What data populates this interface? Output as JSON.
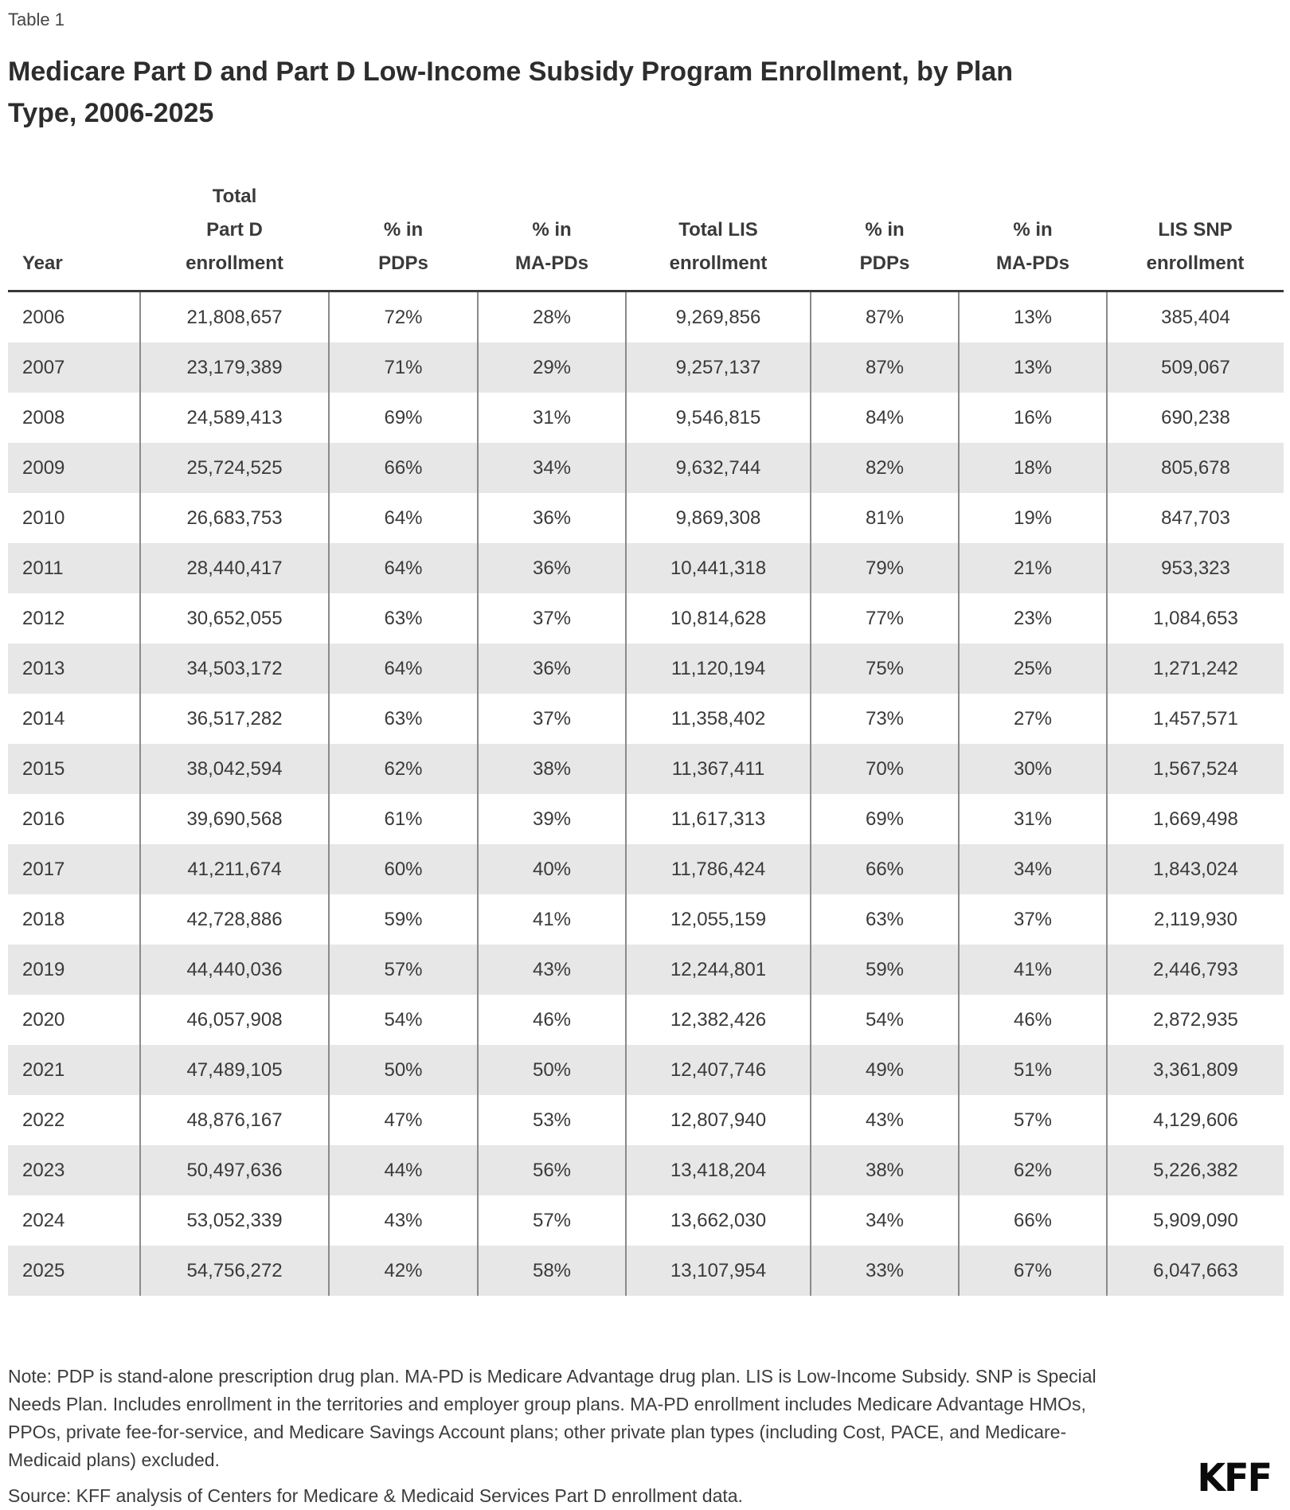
{
  "header": {
    "table_label": "Table 1",
    "title_lines": [
      "Medicare Part D and Part D Low-Income Subsidy Program Enrollment, by Plan",
      "Type, 2006-2025"
    ]
  },
  "chart_data": {
    "type": "table",
    "title": "Medicare Part D and Part D Low-Income Subsidy Program Enrollment, by Plan Type, 2006-2025",
    "columns": [
      "Year",
      "Total\nPart D\nenrollment",
      "% in\nPDPs",
      "% in\nMA-PDs",
      "Total LIS\nenrollment",
      "% in\nPDPs",
      "% in\nMA-PDs",
      "LIS SNP\nenrollment"
    ],
    "rows": [
      [
        "2006",
        "21,808,657",
        "72%",
        "28%",
        "9,269,856",
        "87%",
        "13%",
        "385,404"
      ],
      [
        "2007",
        "23,179,389",
        "71%",
        "29%",
        "9,257,137",
        "87%",
        "13%",
        "509,067"
      ],
      [
        "2008",
        "24,589,413",
        "69%",
        "31%",
        "9,546,815",
        "84%",
        "16%",
        "690,238"
      ],
      [
        "2009",
        "25,724,525",
        "66%",
        "34%",
        "9,632,744",
        "82%",
        "18%",
        "805,678"
      ],
      [
        "2010",
        "26,683,753",
        "64%",
        "36%",
        "9,869,308",
        "81%",
        "19%",
        "847,703"
      ],
      [
        "2011",
        "28,440,417",
        "64%",
        "36%",
        "10,441,318",
        "79%",
        "21%",
        "953,323"
      ],
      [
        "2012",
        "30,652,055",
        "63%",
        "37%",
        "10,814,628",
        "77%",
        "23%",
        "1,084,653"
      ],
      [
        "2013",
        "34,503,172",
        "64%",
        "36%",
        "11,120,194",
        "75%",
        "25%",
        "1,271,242"
      ],
      [
        "2014",
        "36,517,282",
        "63%",
        "37%",
        "11,358,402",
        "73%",
        "27%",
        "1,457,571"
      ],
      [
        "2015",
        "38,042,594",
        "62%",
        "38%",
        "11,367,411",
        "70%",
        "30%",
        "1,567,524"
      ],
      [
        "2016",
        "39,690,568",
        "61%",
        "39%",
        "11,617,313",
        "69%",
        "31%",
        "1,669,498"
      ],
      [
        "2017",
        "41,211,674",
        "60%",
        "40%",
        "11,786,424",
        "66%",
        "34%",
        "1,843,024"
      ],
      [
        "2018",
        "42,728,886",
        "59%",
        "41%",
        "12,055,159",
        "63%",
        "37%",
        "2,119,930"
      ],
      [
        "2019",
        "44,440,036",
        "57%",
        "43%",
        "12,244,801",
        "59%",
        "41%",
        "2,446,793"
      ],
      [
        "2020",
        "46,057,908",
        "54%",
        "46%",
        "12,382,426",
        "54%",
        "46%",
        "2,872,935"
      ],
      [
        "2021",
        "47,489,105",
        "50%",
        "50%",
        "12,407,746",
        "49%",
        "51%",
        "3,361,809"
      ],
      [
        "2022",
        "48,876,167",
        "47%",
        "53%",
        "12,807,940",
        "43%",
        "57%",
        "4,129,606"
      ],
      [
        "2023",
        "50,497,636",
        "44%",
        "56%",
        "13,418,204",
        "38%",
        "62%",
        "5,226,382"
      ],
      [
        "2024",
        "53,052,339",
        "43%",
        "57%",
        "13,662,030",
        "34%",
        "66%",
        "5,909,090"
      ],
      [
        "2025",
        "54,756,272",
        "42%",
        "58%",
        "13,107,954",
        "33%",
        "67%",
        "6,047,663"
      ]
    ]
  },
  "footer": {
    "note": "Note: PDP is stand-alone prescription drug plan. MA-PD is Medicare Advantage drug plan. LIS is Low-Income Subsidy. SNP is Special Needs Plan. Includes enrollment in the territories and employer group plans. MA-PD enrollment includes Medicare Advantage HMOs, PPOs, private fee-for-service, and Medicare Savings Account plans; other private plan types (including Cost, PACE, and Medicare-Medicaid plans) excluded.",
    "source": "Source: KFF analysis of Centers for Medicare & Medicaid Services Part D enrollment data.",
    "logo": "KFF"
  },
  "colors": {
    "stripe": "#e7e7e7",
    "top_border": "#393939",
    "divider": "#8a8a8a",
    "text": "#3a3a3a",
    "title": "#2d2d2d",
    "logo": "#0b0b0b",
    "background": "#ffffff"
  }
}
